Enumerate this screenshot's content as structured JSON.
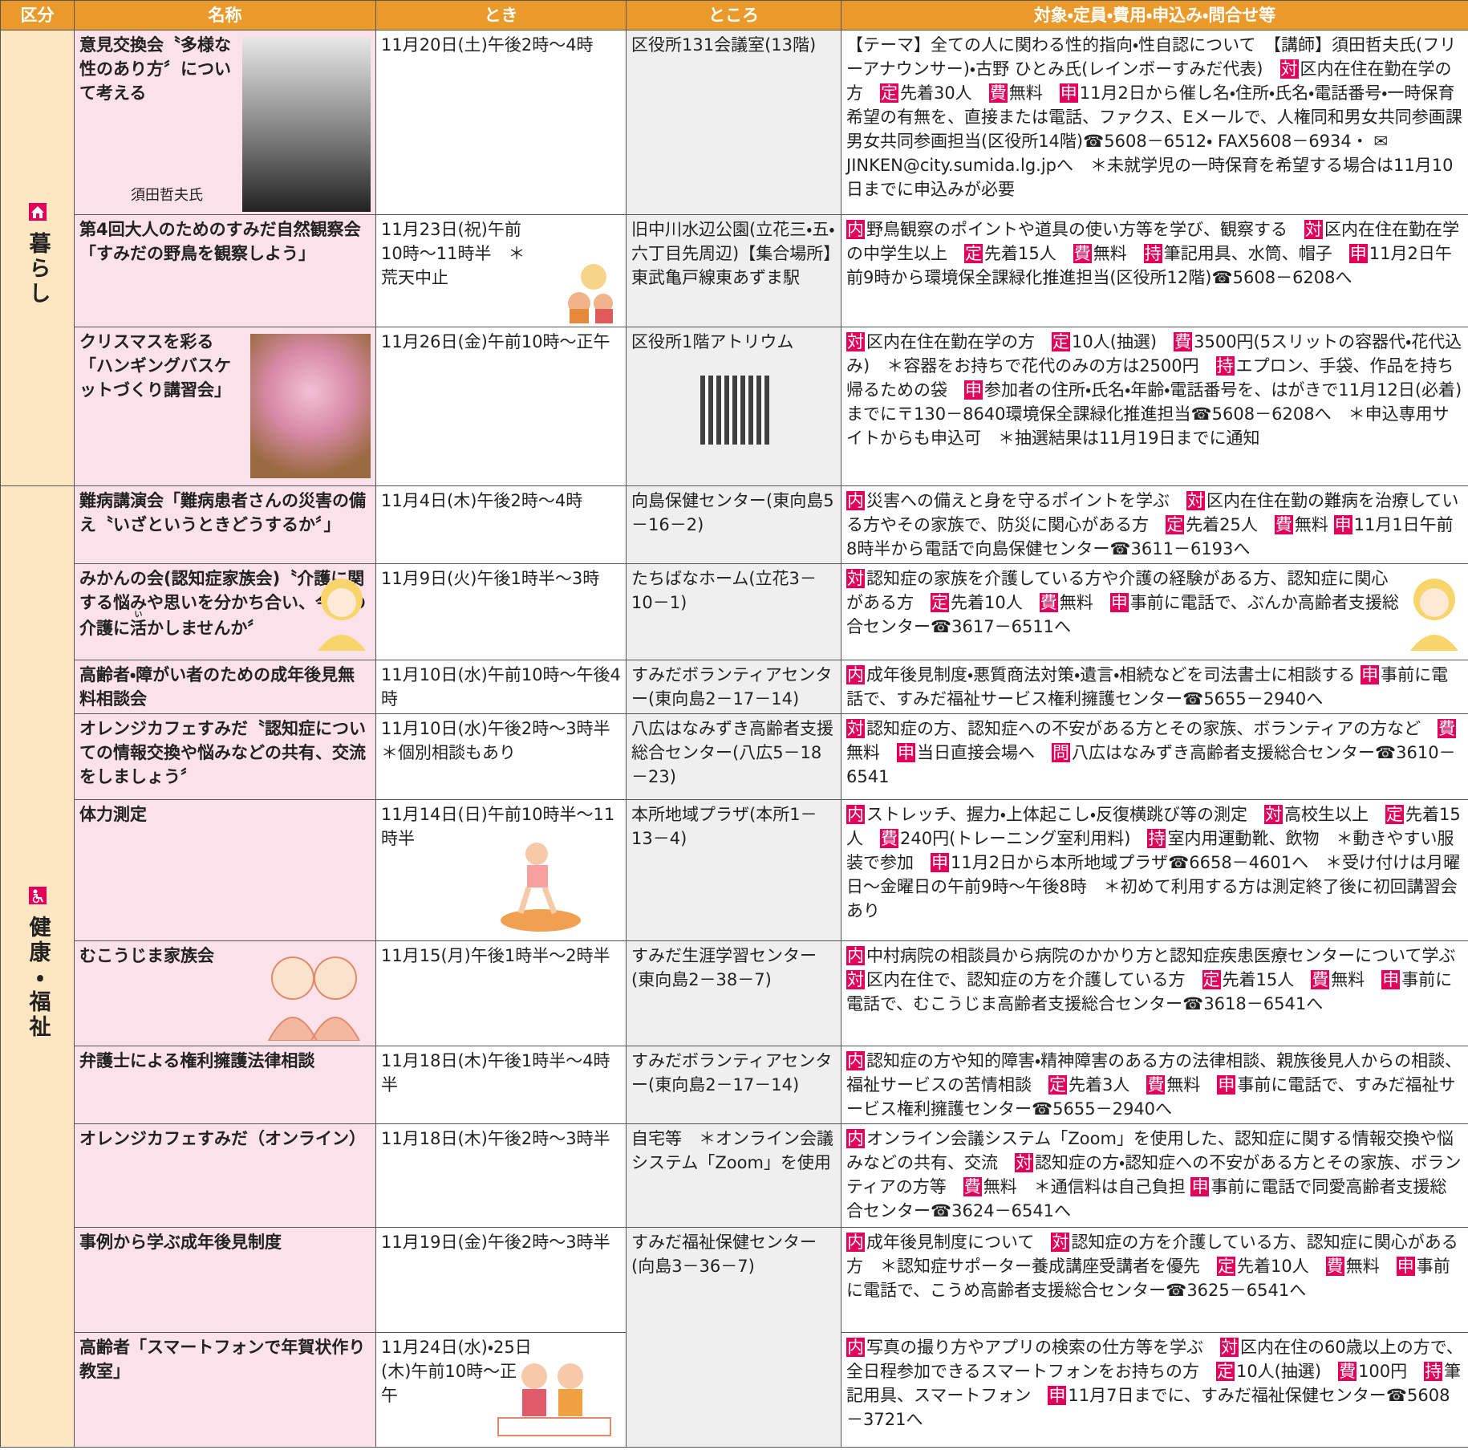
{
  "header": [
    "区分",
    "名称",
    "とき",
    "ところ",
    "対象・定員・費用・申込み・問合せ等"
  ],
  "sections": [
    {
      "label": "暮らし",
      "rows": [
        {
          "name": "意見交換会〝多様な性のあり方〞について考える",
          "photo_caption": "須田哲夫氏",
          "when": "11月20日(土)午後2時～4時",
          "where": "区役所131会議室(13階)",
          "details": [
            {
              "text": "【テーマ】全ての人に関わる性的指向・性自認について　【講師】須田哲夫氏(フリーアナウンサー)・古野 ひとみ氏(レインボーすみだ代表)　"
            },
            {
              "tag": "対",
              "text": "区内在住在勤在学の方　"
            },
            {
              "tag": "定",
              "text": "先着30人　"
            },
            {
              "tag": "費",
              "text": "無料　"
            },
            {
              "tag": "申",
              "text": "11月2日から催し名・住所・氏名・電話番号・一時保育希望の有無を、直接または電話、ファクス、Eメールで、人権同和男女共同参画課男女共同参画担当(区役所14階)☎5608－6512・ FAX5608－6934・ ✉JINKEN@city.sumida.lg.jpへ　＊未就学児の一時保育を希望する場合は11月10日までに申込みが必要"
            }
          ]
        },
        {
          "name": "第4回大人のためのすみだ自然観察会「すみだの野鳥を観察しよう」",
          "when": "11月23日(祝)午前10時～11時半　＊荒天中止",
          "where": "旧中川水辺公園(立花三・五・六丁目先周辺)【集合場所】東武亀戸線東あずま駅",
          "details": [
            {
              "tag": "内",
              "text": "野鳥観察のポイントや道具の使い方等を学び、観察する　"
            },
            {
              "tag": "対",
              "text": "区内在住在勤在学の中学生以上　"
            },
            {
              "tag": "定",
              "text": "先着15人　"
            },
            {
              "tag": "費",
              "text": "無料　"
            },
            {
              "tag": "持",
              "text": "筆記用具、水筒、帽子　"
            },
            {
              "tag": "申",
              "text": "11月2日午前9時から環境保全課緑化推進担当(区役所12階)☎5608－6208へ"
            }
          ]
        },
        {
          "name": "クリスマスを彩る「ハンギングバスケットづくり講習会」",
          "when": "11月26日(金)午前10時～正午",
          "where": "区役所1階アトリウム",
          "details": [
            {
              "tag": "対",
              "text": "区内在住在勤在学の方　"
            },
            {
              "tag": "定",
              "text": "10人(抽選)　"
            },
            {
              "tag": "費",
              "text": "3500円(5スリットの容器代・花代込み)　＊容器をお持ちで花代のみの方は2500円　"
            },
            {
              "tag": "持",
              "text": "エプロン、手袋、作品を持ち帰るための袋　"
            },
            {
              "tag": "申",
              "text": "参加者の住所・氏名・年齢・電話番号を、はがきで11月12日(必着)までに〒130－8640環境保全課緑化推進担当☎5608－6208へ　＊申込専用サイトからも申込可　＊抽選結果は11月19日までに通知"
            }
          ]
        }
      ]
    },
    {
      "label": "健康・福祉",
      "rows": [
        {
          "name": "難病講演会「難病患者さんの災害の備え〝いざというときどうするか〞」",
          "when": "11月4日(木)午後2時～4時",
          "where": "向島保健センター(東向島5－16－2)",
          "details": [
            {
              "tag": "内",
              "text": "災害への備えと身を守るポイントを学ぶ　"
            },
            {
              "tag": "対",
              "text": "区内在住在勤の難病を治療している方やその家族で、防災に関心がある方　"
            },
            {
              "tag": "定",
              "text": "先着25人　"
            },
            {
              "tag": "費",
              "text": "無料 "
            },
            {
              "tag": "申",
              "text": "11月1日午前8時半から電話で向島保健センター☎3611－6193へ"
            }
          ]
        },
        {
          "name": [
            "みかんの会(認知症家族会)〝介護に関する悩みや思いを分かち合い、今後の介護に",
            {
              "base": "活",
              "rt": "い"
            },
            "かしませんか〞"
          ],
          "when": "11月9日(火)午後1時半～3時",
          "where": "たちばなホーム(立花3－10－1)",
          "details": [
            {
              "tag": "対",
              "text": "認知症の家族を介護している方や介護の経験がある方、認知症に関心がある方　"
            },
            {
              "tag": "定",
              "text": "先着10人　"
            },
            {
              "tag": "費",
              "text": "無料　"
            },
            {
              "tag": "申",
              "text": "事前に電話で、ぶんか高齢者支援総合センター☎3617－6511へ"
            }
          ]
        },
        {
          "name": "高齢者・障がい者のための成年後見無料相談会",
          "when": "11月10日(水)午前10時～午後4時",
          "where": "すみだボランティアセンター(東向島2－17－14)",
          "details": [
            {
              "tag": "内",
              "text": "成年後見制度・悪質商法対策・遺言・相続などを司法書士に相談する "
            },
            {
              "tag": "申",
              "text": "事前に電話で、すみだ福祉サービス権利擁護センター☎5655－2940へ"
            }
          ]
        },
        {
          "name": "オレンジカフェすみだ〝認知症についての情報交換や悩みなどの共有、交流をしましょう〞",
          "when": "11月10日(水)午後2時～3時半　＊個別相談もあり",
          "where": "八広はなみずき高齢者支援総合センター(八広5－18－23)",
          "details": [
            {
              "tag": "対",
              "text": "認知症の方、認知症への不安がある方とその家族、ボランティアの方など　"
            },
            {
              "tag": "費",
              "text": "無料　"
            },
            {
              "tag": "申",
              "text": "当日直接会場へ　"
            },
            {
              "tag": "問",
              "text": "八広はなみずき高齢者支援総合センター☎3610－6541"
            }
          ]
        },
        {
          "name": "体力測定",
          "when": "11月14日(日)午前10時半～11時半",
          "where": "本所地域プラザ(本所1－13－4)",
          "details": [
            {
              "tag": "内",
              "text": "ストレッチ、握力・上体起こし・反復横跳び等の測定　"
            },
            {
              "tag": "対",
              "text": "高校生以上　"
            },
            {
              "tag": "定",
              "text": "先着15人　"
            },
            {
              "tag": "費",
              "text": "240円(トレーニング室利用料)　"
            },
            {
              "tag": "持",
              "text": "室内用運動靴、飲物　＊動きやすい服装で参加　"
            },
            {
              "tag": "申",
              "text": "11月2日から本所地域プラザ☎6658－4601へ　＊受け付けは月曜日～金曜日の午前9時～午後8時　＊初めて利用する方は測定終了後に初回講習会あり"
            }
          ]
        },
        {
          "name": "むこうじま家族会",
          "when": "11月15(月)午後1時半～2時半",
          "where": "すみだ生涯学習センター(東向島2－38－7)",
          "details": [
            {
              "tag": "内",
              "text": "中村病院の相談員から病院のかかり方と認知症疾患医療センターについて学ぶ　"
            },
            {
              "tag": "対",
              "text": "区内在住で、認知症の方を介護している方　"
            },
            {
              "tag": "定",
              "text": "先着15人　"
            },
            {
              "tag": "費",
              "text": "無料　"
            },
            {
              "tag": "申",
              "text": "事前に電話で、むこうじま高齢者支援総合センター☎3618－6541へ"
            }
          ]
        },
        {
          "name": "弁護士による権利擁護法律相談",
          "when": "11月18日(木)午後1時半～4時半",
          "where": "すみだボランティアセンター(東向島2－17－14)",
          "details": [
            {
              "tag": "内",
              "text": "認知症の方や知的障害・精神障害のある方の法律相談、親族後見人からの相談、福祉サービスの苦情相談　"
            },
            {
              "tag": "定",
              "text": "先着3人　"
            },
            {
              "tag": "費",
              "text": "無料　"
            },
            {
              "tag": "申",
              "text": "事前に電話で、すみだ福祉サービス権利擁護センター☎5655－2940へ"
            }
          ]
        },
        {
          "name": "オレンジカフェすみだ（オンライン）",
          "when": "11月18日(木)午後2時～3時半",
          "where": "自宅等　＊オンライン会議システム「Zoom」を使用",
          "details": [
            {
              "tag": "内",
              "text": "オンライン会議システム「Zoom」を使用した、認知症に関する情報交換や悩みなどの共有、交流　"
            },
            {
              "tag": "対",
              "text": "認知症の方・認知症への不安がある方とその家族、ボランティアの方等　"
            },
            {
              "tag": "費",
              "text": "無料　＊通信料は自己負担 "
            },
            {
              "tag": "申",
              "text": "事前に電話で同愛高齢者支援総合センター☎3624－6541へ"
            }
          ]
        },
        {
          "name": "事例から学ぶ成年後見制度",
          "when": "11月19日(金)午後2時～3時半",
          "where": "すみだ福祉保健センター(向島3－36－7)",
          "details": [
            {
              "tag": "内",
              "text": "成年後見制度について　"
            },
            {
              "tag": "対",
              "text": "認知症の方を介護している方、認知症に関心がある方　＊認知症サポーター養成講座受講者を優先　"
            },
            {
              "tag": "定",
              "text": "先着10人　"
            },
            {
              "tag": "費",
              "text": "無料　"
            },
            {
              "tag": "申",
              "text": "事前に電話で、こうめ高齢者支援総合センター☎3625－6541へ"
            }
          ]
        },
        {
          "name": "高齢者「スマートフォンで年賀状作り教室」",
          "when": "11月24日(水)・25日(木)午前10時～正午",
          "details": [
            {
              "tag": "内",
              "text": "写真の撮り方やアプリの検索の仕方等を学ぶ　"
            },
            {
              "tag": "対",
              "text": "区内在住の60歳以上の方で、全日程参加できるスマートフォンをお持ちの方　"
            },
            {
              "tag": "定",
              "text": "10人(抽選)　"
            },
            {
              "tag": "費",
              "text": "100円　"
            },
            {
              "tag": "持",
              "text": "筆記用具、スマートフォン　"
            },
            {
              "tag": "申",
              "text": "11月7日までに、すみだ福祉保健センター☎5608－3721へ"
            }
          ]
        }
      ]
    }
  ]
}
